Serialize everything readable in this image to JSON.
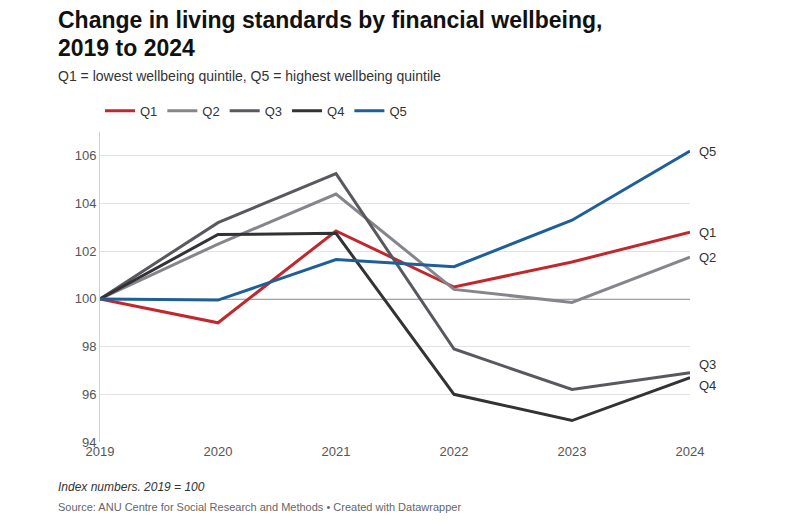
{
  "chart_data": {
    "type": "line",
    "title": "Change in living standards by financial wellbeing, 2019 to 2024",
    "subtitle": "Q1 = lowest wellbeing quintile, Q5 = highest wellbeing quintile",
    "notes": [
      "Index numbers. 2019 = 100",
      "Source: ANU Centre for Social Research and Methods • Created with Datawrapper"
    ],
    "x": [
      2019,
      2020,
      2021,
      2022,
      2023,
      2024
    ],
    "xlim": [
      2019,
      2024
    ],
    "xticks": [
      2019,
      2020,
      2021,
      2022,
      2023,
      2024
    ],
    "ylim": [
      94,
      107
    ],
    "yticks": [
      94,
      96,
      98,
      100,
      102,
      104,
      106
    ],
    "grid": true,
    "legend": "top-left",
    "baseline": 100,
    "line_style": "solid",
    "series": [
      {
        "name": "Q1",
        "color": "#c0282d",
        "values": [
          100,
          99.0,
          102.85,
          100.5,
          101.55,
          102.8
        ]
      },
      {
        "name": "Q2",
        "color": "#85858c",
        "values": [
          100,
          102.3,
          104.4,
          100.4,
          99.85,
          101.75
        ]
      },
      {
        "name": "Q3",
        "color": "#58585f",
        "values": [
          100,
          103.2,
          105.25,
          97.9,
          96.2,
          96.9
        ]
      },
      {
        "name": "Q4",
        "color": "#333336",
        "values": [
          100,
          102.7,
          102.75,
          96.0,
          94.9,
          96.7
        ]
      },
      {
        "name": "Q5",
        "color": "#1f5f99",
        "values": [
          100,
          99.95,
          101.65,
          101.35,
          103.3,
          106.2
        ]
      }
    ]
  }
}
